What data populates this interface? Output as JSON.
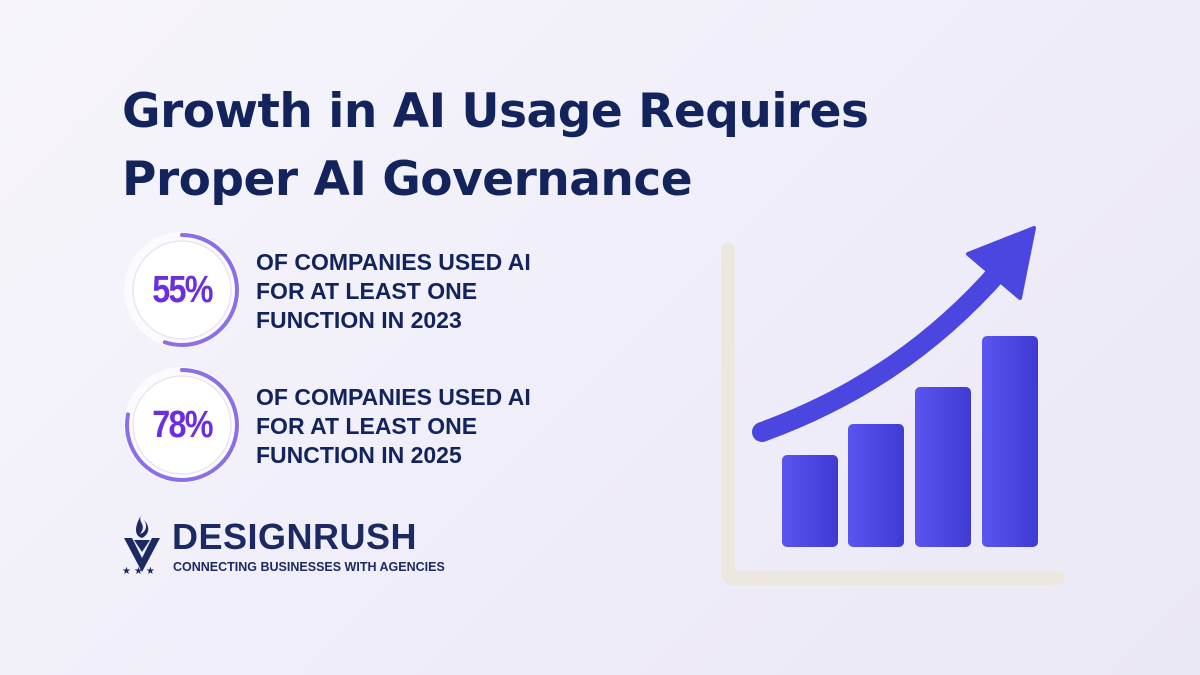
{
  "title": {
    "line1": "Growth in AI Usage Requires",
    "line2": "Proper AI Governance"
  },
  "stats": [
    {
      "value": "55%",
      "percent": 55,
      "line1": "OF COMPANIES USED AI",
      "line2": "FOR AT LEAST ONE",
      "line3": "FUNCTION IN 2023"
    },
    {
      "value": "78%",
      "percent": 78,
      "line1": "OF COMPANIES USED AI",
      "line2": "FOR AT LEAST ONE",
      "line3": "FUNCTION IN 2025"
    }
  ],
  "logo": {
    "brand": "DESIGNRUSH",
    "tagline": "CONNECTING BUSINESSES WITH AGENCIES",
    "stars": "★★★"
  },
  "colors": {
    "title": "#13235b",
    "accent": "#6a2fe0",
    "ring": "#8b6ee8",
    "bars": "#4b46e0",
    "axis": "#eeeae2"
  },
  "illustration": {
    "icon": "growth-bar-chart-with-arrow-icon"
  }
}
